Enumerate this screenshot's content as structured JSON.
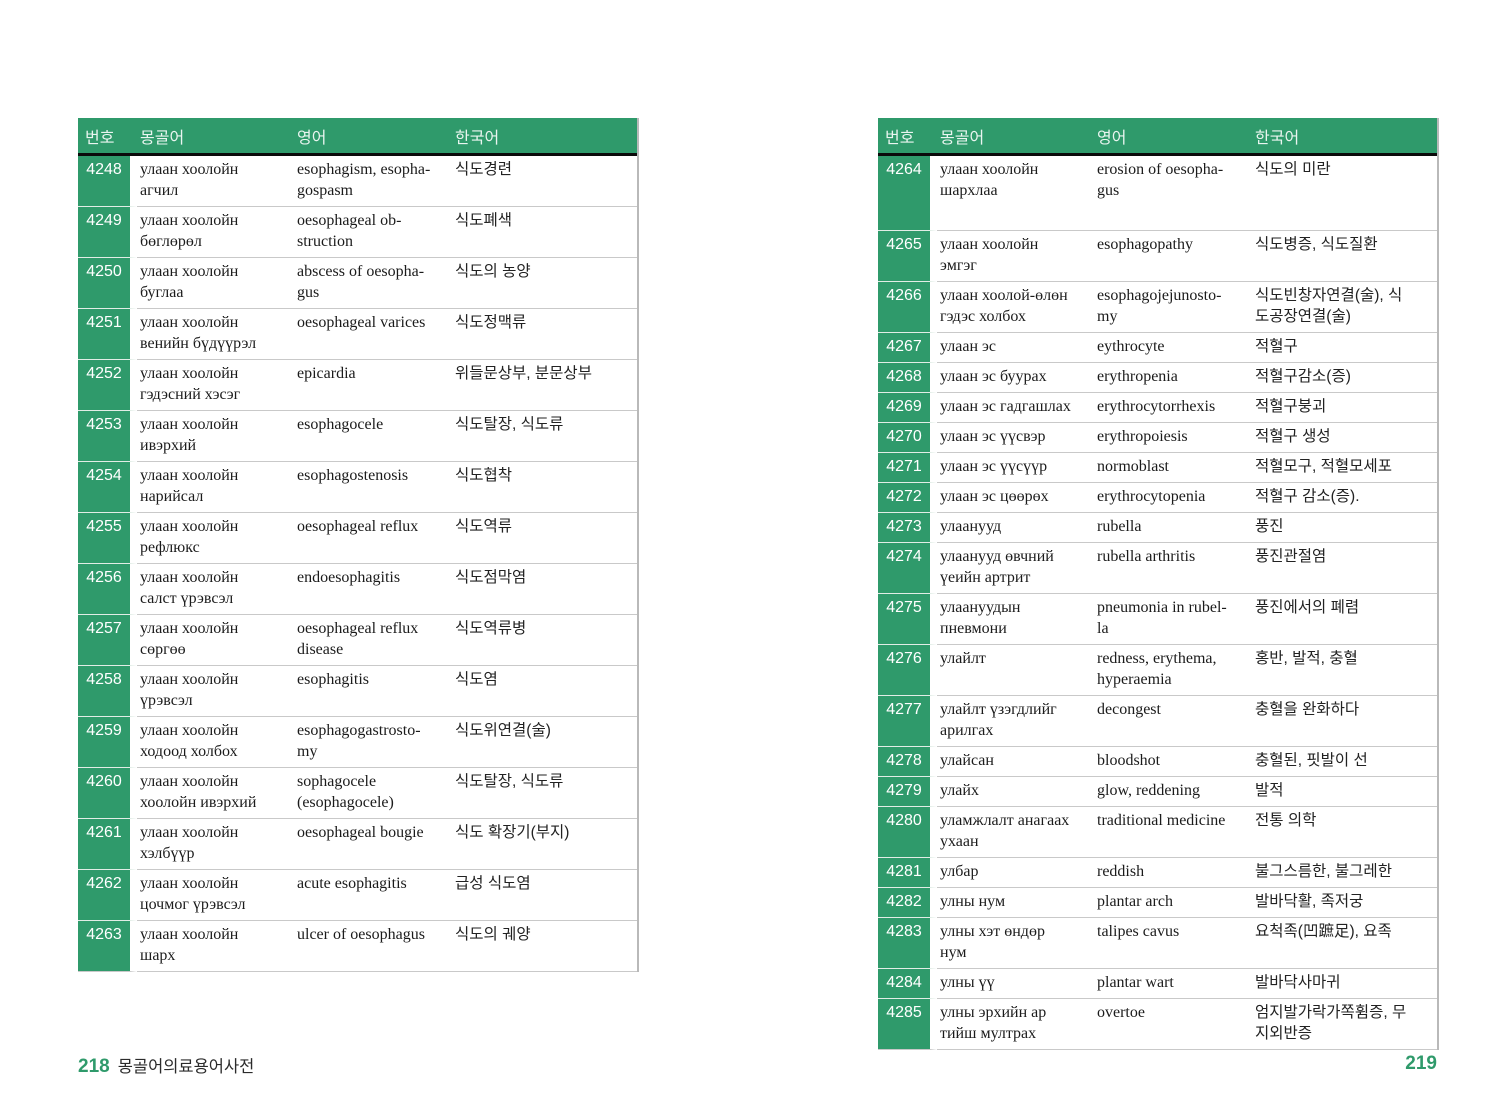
{
  "page": {
    "footer_left_number": "218",
    "footer_left_title": "몽골어의료용어사전",
    "footer_right_number": "219"
  },
  "columns": {
    "num": "번호",
    "mn": "몽골어",
    "en": "영어",
    "ko": "한국어"
  },
  "tables": [
    {
      "side": "left",
      "rows": [
        {
          "num": "4248",
          "mn": "улаан хоолойн\nагчил",
          "en": "esophagism, esopha-\ngospasm",
          "ko": "식도경련"
        },
        {
          "num": "4249",
          "mn": "улаан хоолойн\nбөглөрөл",
          "en": "oesophageal ob-\nstruction",
          "ko": "식도폐색"
        },
        {
          "num": "4250",
          "mn": "улаан хоолойн\nбуглаа",
          "en": "abscess of oesopha-\ngus",
          "ko": "식도의 농양"
        },
        {
          "num": "4251",
          "mn": "улаан хоолойн\nвенийн бүдүүрэл",
          "en": "oesophageal varices",
          "ko": "식도정맥류"
        },
        {
          "num": "4252",
          "mn": "улаан хоолойн\nгэдэсний хэсэг",
          "en": "epicardia",
          "ko": "위들문상부, 분문상부"
        },
        {
          "num": "4253",
          "mn": "улаан хоолойн\nивэрхий",
          "en": "esophagocele",
          "ko": "식도탈장, 식도류"
        },
        {
          "num": "4254",
          "mn": "улаан хоолойн\nнарийсал",
          "en": "esophagostenosis",
          "ko": "식도협착"
        },
        {
          "num": "4255",
          "mn": "улаан хоолойн\nрефлюкс",
          "en": "oesophageal reflux",
          "ko": "식도역류"
        },
        {
          "num": "4256",
          "mn": "улаан хоолойн\nсалст үрэвсэл",
          "en": "endoesophagitis",
          "ko": "식도점막염"
        },
        {
          "num": "4257",
          "mn": "улаан хоолойн\nсөргөө",
          "en": "oesophageal reflux\ndisease",
          "ko": "식도역류병"
        },
        {
          "num": "4258",
          "mn": "улаан хоолойн\nүрэвсэл",
          "en": "esophagitis",
          "ko": "식도염"
        },
        {
          "num": "4259",
          "mn": "улаан хоолойн\nходоод холбох",
          "en": "esophagogastrosto-\nmy",
          "ko": "식도위연결(술)"
        },
        {
          "num": "4260",
          "mn": "улаан хоолойн\nхоолойн ивэрхий",
          "en": "sophagocele\n(esophagocele)",
          "ko": "식도탈장, 식도류"
        },
        {
          "num": "4261",
          "mn": "улаан хоолойн\nхэлбүүр",
          "en": "oesophageal bougie",
          "ko": "식도 확장기(부지)"
        },
        {
          "num": "4262",
          "mn": "улаан хоолойн\nцочмог үрэвсэл",
          "en": "acute esophagitis",
          "ko": "급성 식도염"
        },
        {
          "num": "4263",
          "mn": "улаан хоолойн\nшарх",
          "en": "ulcer of oesophagus",
          "ko": "식도의 궤양"
        }
      ]
    },
    {
      "side": "right",
      "rows": [
        {
          "num": "4264",
          "mn": "улаан хоолойн\nшархлаа",
          "en": "erosion of oesopha-\ngus",
          "ko": "식도의 미란",
          "tall": true
        },
        {
          "num": "4265",
          "mn": "улаан хоолойн\nэмгэг",
          "en": "esophagopathy",
          "ko": "식도병증, 식도질환"
        },
        {
          "num": "4266",
          "mn": "улаан хоолой-өлөн\nгэдэс холбох",
          "en": "esophagojejunosto-\nmy",
          "ko": "식도빈창자연결(술), 식\n도공장연결(술)"
        },
        {
          "num": "4267",
          "mn": "улаан эс",
          "en": "eythrocyte",
          "ko": "적혈구"
        },
        {
          "num": "4268",
          "mn": "улаан эс буурах",
          "en": "erythropenia",
          "ko": "적혈구감소(증)"
        },
        {
          "num": "4269",
          "mn": "улаан эс гадгашлах",
          "en": "erythrocytorrhexis",
          "ko": "적혈구붕괴"
        },
        {
          "num": "4270",
          "mn": "улаан эс үүсвэр",
          "en": "erythropoiesis",
          "ko": "적혈구 생성"
        },
        {
          "num": "4271",
          "mn": "улаан эс үүсүүр",
          "en": "normoblast",
          "ko": "적혈모구, 적혈모세포"
        },
        {
          "num": "4272",
          "mn": "улаан эс цөөрөх",
          "en": "erythrocytopenia",
          "ko": "적혈구 감소(증)."
        },
        {
          "num": "4273",
          "mn": "улаанууд",
          "en": "rubella",
          "ko": "풍진"
        },
        {
          "num": "4274",
          "mn": "улаанууд өвчний\nүеийн артрит",
          "en": "rubella arthritis",
          "ko": "풍진관절염"
        },
        {
          "num": "4275",
          "mn": "улаануудын\nпневмони",
          "en": "pneumonia in rubel-\nla",
          "ko": "풍진에서의 폐렴"
        },
        {
          "num": "4276",
          "mn": "улайлт",
          "en": "redness, erythema,\nhyperaemia",
          "ko": "홍반, 발적, 충혈"
        },
        {
          "num": "4277",
          "mn": "улайлт үзэгдлийг\nарилгах",
          "en": "decongest",
          "ko": "충혈을 완화하다"
        },
        {
          "num": "4278",
          "mn": "улайсан",
          "en": "bloodshot",
          "ko": "충혈된, 핏발이 선"
        },
        {
          "num": "4279",
          "mn": "улайх",
          "en": "glow, reddening",
          "ko": "발적"
        },
        {
          "num": "4280",
          "mn": "уламжлалт анагаах\nухаан",
          "en": "traditional medicine",
          "ko": "전통 의학"
        },
        {
          "num": "4281",
          "mn": "улбар",
          "en": "reddish",
          "ko": "불그스름한, 불그레한"
        },
        {
          "num": "4282",
          "mn": "улны нум",
          "en": "plantar arch",
          "ko": "발바닥활, 족저궁"
        },
        {
          "num": "4283",
          "mn": "улны хэт өндөр\nнум",
          "en": "talipes cavus",
          "ko": "요척족(凹蹠足), 요족"
        },
        {
          "num": "4284",
          "mn": "улны үү",
          "en": "plantar wart",
          "ko": "발바닥사마귀"
        },
        {
          "num": "4285",
          "mn": "улны эрхийн ар\nтийш мултрах",
          "en": "overtoe",
          "ko": "엄지발가락가쪽휨증, 무\n지외반증"
        }
      ]
    }
  ]
}
